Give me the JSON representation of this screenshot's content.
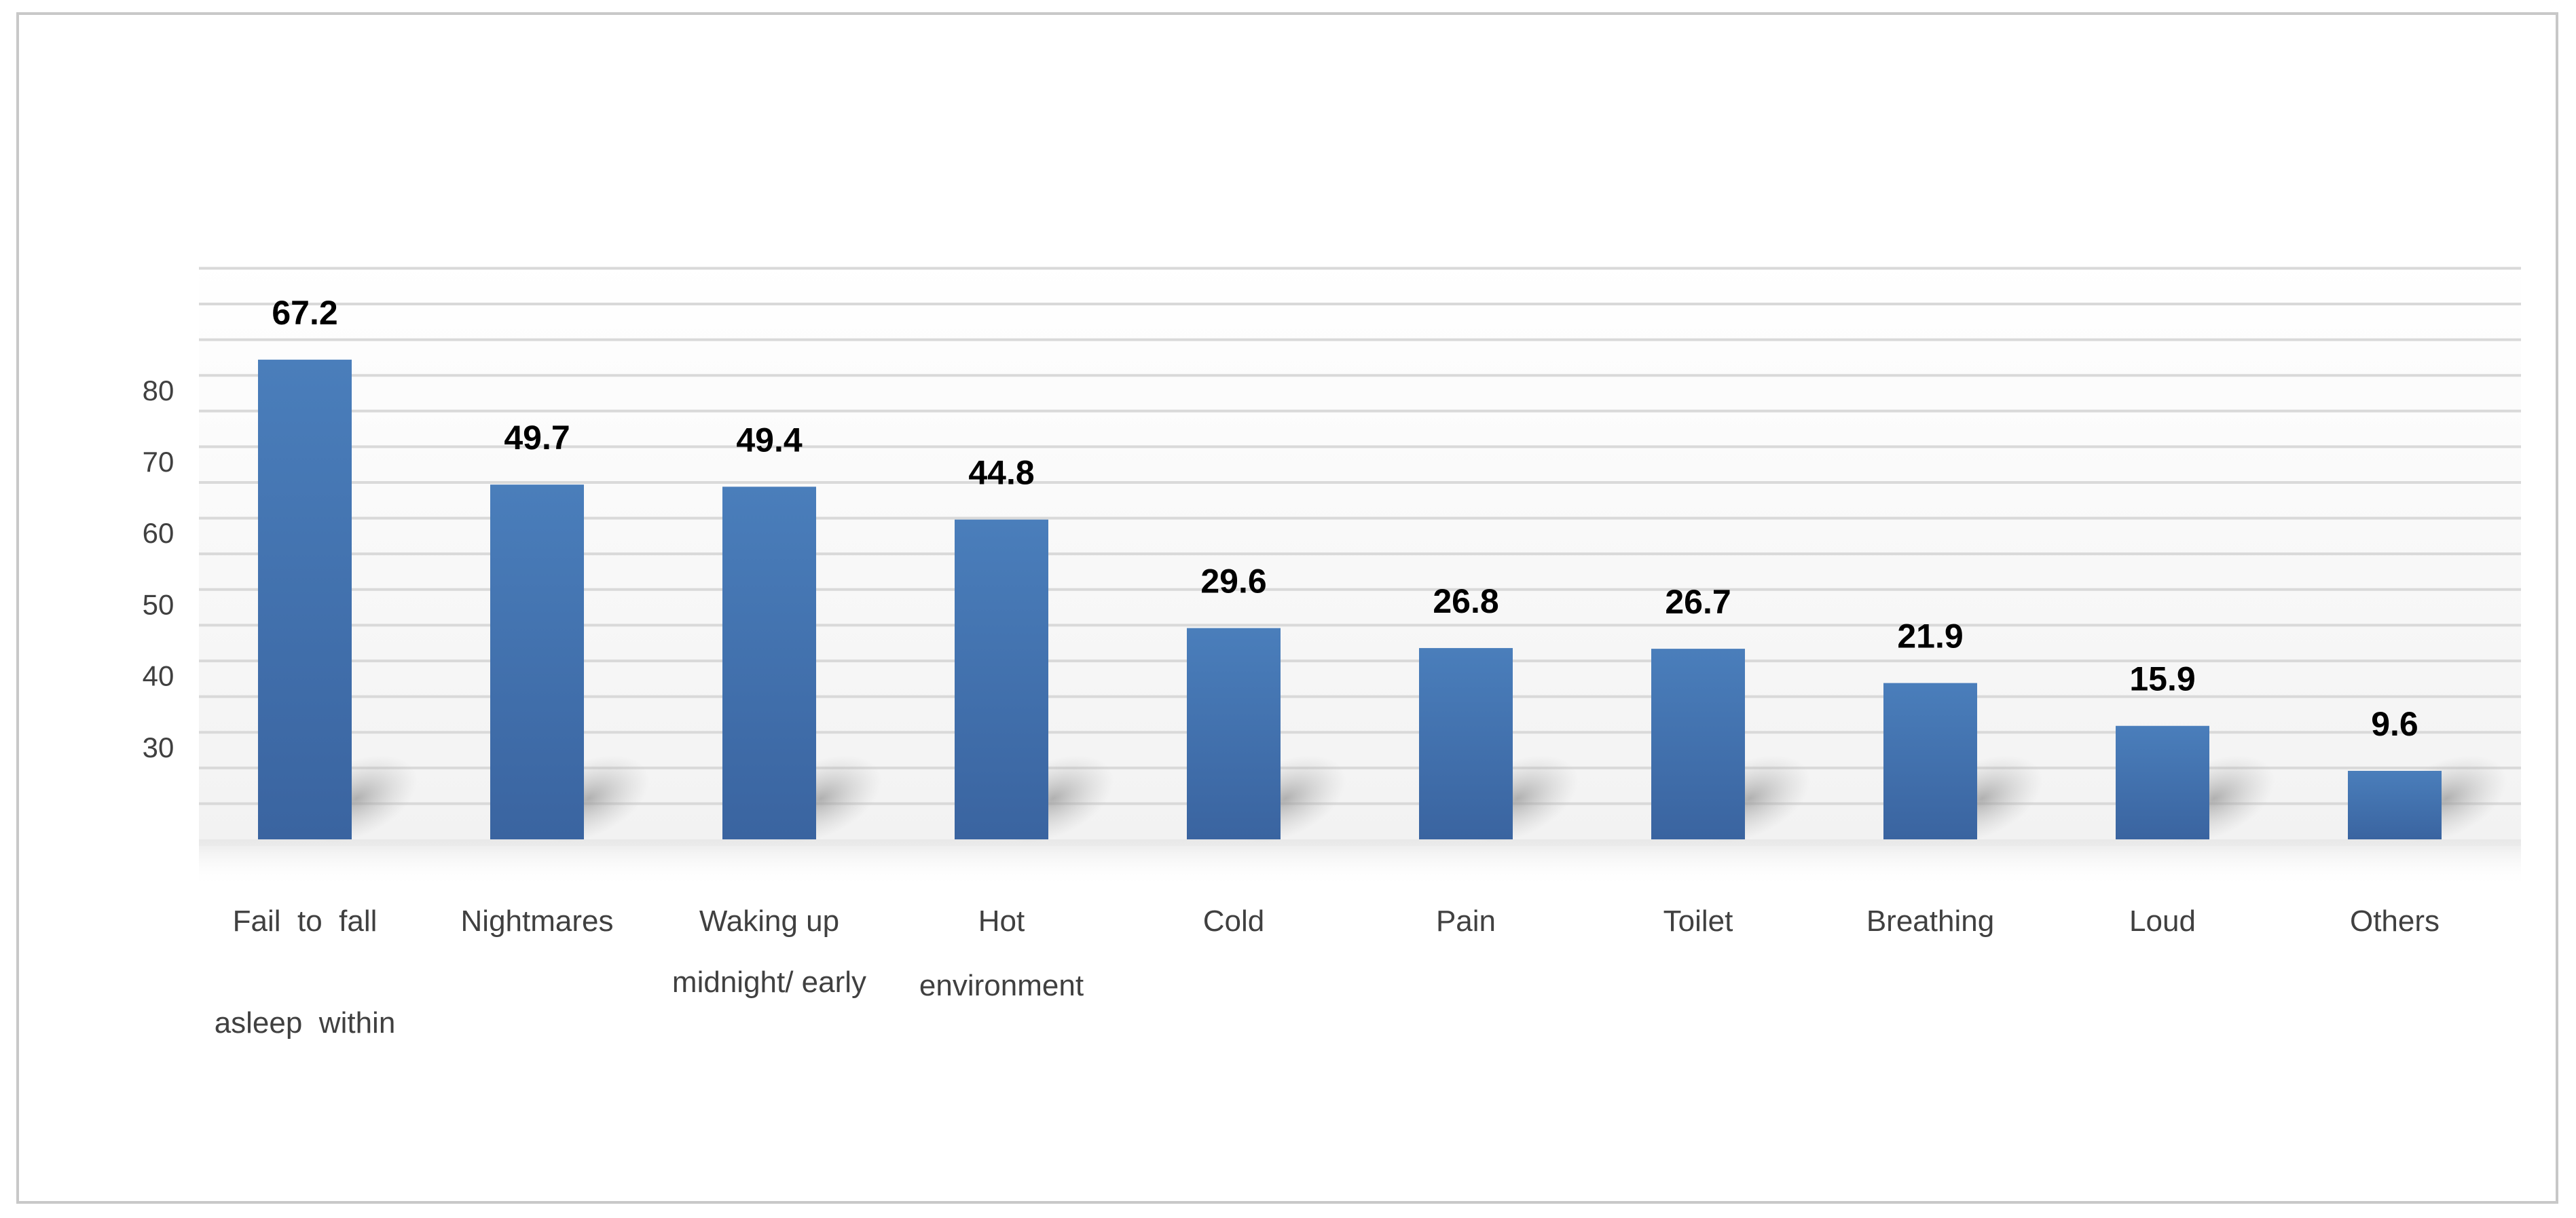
{
  "chart_data": {
    "type": "bar",
    "categories": [
      [
        "Fail  to  fall",
        "asleep  within"
      ],
      [
        "Nightmares"
      ],
      [
        "Waking up",
        "midnight/ early"
      ],
      [
        "Hot",
        "environment"
      ],
      [
        "Cold"
      ],
      [
        "Pain"
      ],
      [
        "Toilet"
      ],
      [
        "Breathing"
      ],
      [
        "Loud"
      ],
      [
        "Others"
      ]
    ],
    "values": [
      67.2,
      49.7,
      49.4,
      44.8,
      29.6,
      26.8,
      26.7,
      21.9,
      15.9,
      9.6
    ],
    "data_labels": [
      "67.2",
      "49.7",
      "49.4",
      "44.8",
      "29.6",
      "26.8",
      "26.7",
      "21.9",
      "15.9",
      "9.6"
    ],
    "y_tick_labels": [
      "30",
      "40",
      "50",
      "60",
      "70",
      "80"
    ],
    "ylim": [
      0,
      80
    ],
    "grid": true,
    "bar_color": "#4a7ebb",
    "bar_color_bottom": "#3a64a0",
    "grid_color": "#d9d9d9",
    "title": "",
    "xlabel": "",
    "ylabel": ""
  }
}
